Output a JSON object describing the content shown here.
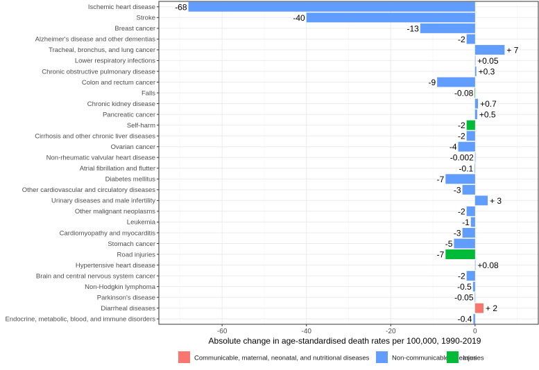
{
  "chart_data": {
    "type": "bar",
    "orientation": "horizontal",
    "title": "",
    "xlabel": "Absolute change in age-standardised death rates per 100,000, 1990-2019",
    "ylabel": "",
    "xlim": [
      -75,
      15
    ],
    "xticks": [
      -60,
      -40,
      -20,
      0
    ],
    "grid": true,
    "legend_position": "bottom",
    "colors": {
      "Communicable, maternal, neonatal, and nutritional diseases": "#f8766d",
      "Non-communicable diseases": "#619cff",
      "Injuries": "#00ba38"
    },
    "legend": [
      "Communicable, maternal, neonatal, and nutritional diseases",
      "Non-communicable diseases",
      "Injuries"
    ],
    "bars": [
      {
        "category": "Ischemic heart disease",
        "value": -68,
        "label": "-68",
        "group": "Non-communicable diseases"
      },
      {
        "category": "Stroke",
        "value": -40,
        "label": "-40",
        "group": "Non-communicable diseases"
      },
      {
        "category": "Breast cancer",
        "value": -13,
        "label": "-13",
        "group": "Non-communicable diseases"
      },
      {
        "category": "Alzheimer's disease and other dementias",
        "value": -2,
        "label": "-2",
        "group": "Non-communicable diseases"
      },
      {
        "category": "Tracheal, bronchus, and lung cancer",
        "value": 7,
        "label": "+ 7",
        "group": "Non-communicable diseases"
      },
      {
        "category": "Lower respiratory infections",
        "value": 0.05,
        "label": "+0.05",
        "group": "Non-communicable diseases"
      },
      {
        "category": "Chronic obstructive pulmonary disease",
        "value": 0.3,
        "label": "+0.3",
        "group": "Non-communicable diseases"
      },
      {
        "category": "Colon and rectum cancer",
        "value": -9,
        "label": "-9",
        "group": "Non-communicable diseases"
      },
      {
        "category": "Falls",
        "value": -0.08,
        "label": "-0.08",
        "group": "Injuries"
      },
      {
        "category": "Chronic kidney disease",
        "value": 0.7,
        "label": "+0.7",
        "group": "Non-communicable diseases"
      },
      {
        "category": "Pancreatic cancer",
        "value": 0.5,
        "label": "+0.5",
        "group": "Non-communicable diseases"
      },
      {
        "category": "Self-harm",
        "value": -2,
        "label": "-2",
        "group": "Injuries"
      },
      {
        "category": "Cirrhosis and other chronic liver diseases",
        "value": -2,
        "label": "-2",
        "group": "Non-communicable diseases"
      },
      {
        "category": "Ovarian cancer",
        "value": -4,
        "label": "-4",
        "group": "Non-communicable diseases"
      },
      {
        "category": "Non-rheumatic valvular heart disease",
        "value": -0.002,
        "label": "-0.002",
        "group": "Non-communicable diseases"
      },
      {
        "category": "Atrial fibrillation and flutter",
        "value": -0.1,
        "label": "-0.1",
        "group": "Non-communicable diseases"
      },
      {
        "category": "Diabetes mellitus",
        "value": -7,
        "label": "-7",
        "group": "Non-communicable diseases"
      },
      {
        "category": "Other cardiovascular and circulatory diseases",
        "value": -3,
        "label": "-3",
        "group": "Non-communicable diseases"
      },
      {
        "category": "Urinary diseases and male infertility",
        "value": 3,
        "label": "+ 3",
        "group": "Non-communicable diseases"
      },
      {
        "category": "Other malignant neoplasms",
        "value": -2,
        "label": "-2",
        "group": "Non-communicable diseases"
      },
      {
        "category": "Leukemia",
        "value": -1,
        "label": "-1",
        "group": "Non-communicable diseases"
      },
      {
        "category": "Cardiomyopathy and myocarditis",
        "value": -3,
        "label": "-3",
        "group": "Non-communicable diseases"
      },
      {
        "category": "Stomach cancer",
        "value": -5,
        "label": "-5",
        "group": "Non-communicable diseases"
      },
      {
        "category": "Road injuries",
        "value": -7,
        "label": "-7",
        "group": "Injuries"
      },
      {
        "category": "Hypertensive heart disease",
        "value": 0.08,
        "label": "+0.08",
        "group": "Non-communicable diseases"
      },
      {
        "category": "Brain and central nervous system cancer",
        "value": -2,
        "label": "-2",
        "group": "Non-communicable diseases"
      },
      {
        "category": "Non-Hodgkin lymphoma",
        "value": -0.5,
        "label": "-0.5",
        "group": "Non-communicable diseases"
      },
      {
        "category": "Parkinson's disease",
        "value": -0.05,
        "label": "-0.05",
        "group": "Non-communicable diseases"
      },
      {
        "category": "Diarrheal diseases",
        "value": 2,
        "label": "+ 2",
        "group": "Communicable, maternal, neonatal, and nutritional diseases"
      },
      {
        "category": "Endocrine, metabolic, blood, and immune disorders",
        "value": -0.4,
        "label": "-0.4",
        "group": "Non-communicable diseases"
      }
    ]
  }
}
